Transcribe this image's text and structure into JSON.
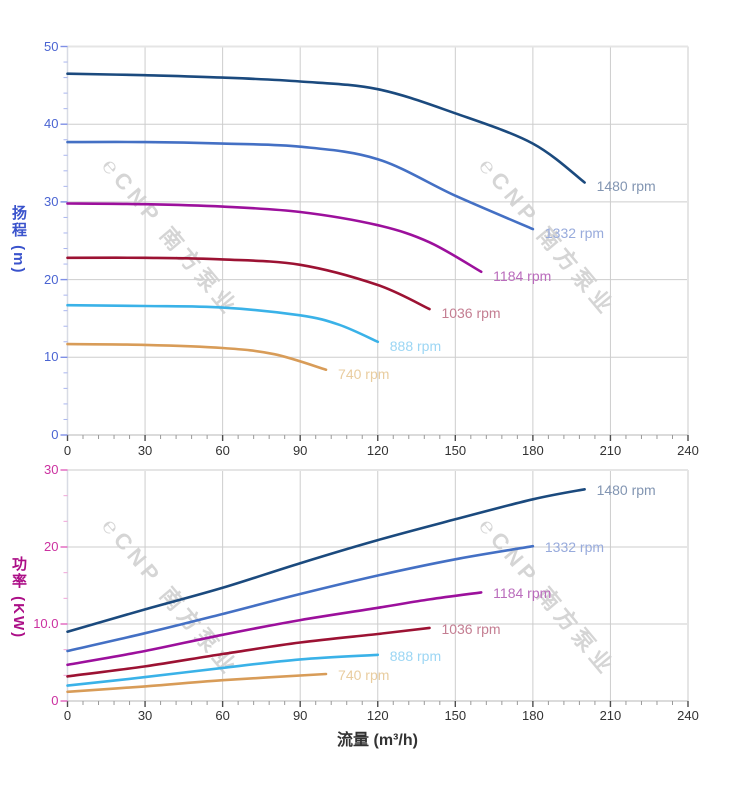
{
  "chart_data": {
    "type": "line",
    "x_axis_title": "流量 (m³/h)",
    "x_ticks": {
      "values": [
        0,
        30,
        60,
        90,
        120,
        150,
        180,
        210,
        240
      ],
      "labels": [
        "0",
        "30",
        "60",
        "90",
        "120",
        "150",
        "180",
        "210",
        "240"
      ],
      "minor_step": 6,
      "xlim": [
        0,
        240
      ]
    },
    "watermark": {
      "text": "℮CNP 南方泵业",
      "color": "#d5d5d5"
    },
    "axis_style": {
      "x_label_color": "#333333",
      "x_title_color": "#333333",
      "grid_color": "#cdcdcd",
      "border_color": "#e5e5e5",
      "x_tick_color": "#4d4d4d",
      "x_minor_tick_color": "#999999",
      "axis_line_color": "#d8dbe4"
    },
    "charts": [
      {
        "name": "head-vs-flow",
        "y_axis": {
          "title": "扬程 (m)",
          "values": [
            0,
            10,
            20,
            30,
            40,
            50
          ],
          "labels": [
            "0",
            "10",
            "20",
            "30",
            "40",
            "50"
          ],
          "ylim": [
            0,
            50
          ],
          "minor_step": 2,
          "title_color": "#3a53cc",
          "label_color": "#4a64d2",
          "tick_color": "#7f90e6",
          "minor_tick_color": "#a9b5ef"
        },
        "series": [
          {
            "label": "1480 rpm",
            "color": "#1b4a7e",
            "label_color": "#8295b2",
            "points": [
              [
                0,
                46.5
              ],
              [
                30,
                46.3
              ],
              [
                60,
                46.0
              ],
              [
                90,
                45.5
              ],
              [
                120,
                44.5
              ],
              [
                150,
                41.4
              ],
              [
                180,
                37.5
              ],
              [
                200,
                32.5
              ]
            ]
          },
          {
            "label": "1332 rpm",
            "color": "#4470c4",
            "label_color": "#98abdc",
            "points": [
              [
                0,
                37.7
              ],
              [
                30,
                37.7
              ],
              [
                60,
                37.5
              ],
              [
                90,
                37.1
              ],
              [
                120,
                35.5
              ],
              [
                150,
                30.8
              ],
              [
                180,
                26.5
              ]
            ]
          },
          {
            "label": "1184 rpm",
            "color": "#9c109c",
            "label_color": "#ba6cbc",
            "points": [
              [
                0,
                29.8
              ],
              [
                30,
                29.7
              ],
              [
                60,
                29.4
              ],
              [
                90,
                28.7
              ],
              [
                120,
                27.0
              ],
              [
                140,
                24.8
              ],
              [
                160,
                21.0
              ]
            ]
          },
          {
            "label": "1036 rpm",
            "color": "#9c1233",
            "label_color": "#c47e92",
            "points": [
              [
                0,
                22.8
              ],
              [
                30,
                22.8
              ],
              [
                60,
                22.6
              ],
              [
                90,
                21.9
              ],
              [
                120,
                19.3
              ],
              [
                140,
                16.2
              ]
            ]
          },
          {
            "label": "888 rpm",
            "color": "#3ab2e8",
            "label_color": "#9cd6f4",
            "points": [
              [
                0,
                16.7
              ],
              [
                30,
                16.6
              ],
              [
                60,
                16.4
              ],
              [
                90,
                15.4
              ],
              [
                105,
                14.2
              ],
              [
                120,
                12.0
              ]
            ]
          },
          {
            "label": "740 rpm",
            "color": "#d89c58",
            "label_color": "#e9cda0",
            "points": [
              [
                0,
                11.7
              ],
              [
                30,
                11.6
              ],
              [
                60,
                11.2
              ],
              [
                80,
                10.4
              ],
              [
                100,
                8.4
              ]
            ]
          }
        ]
      },
      {
        "name": "power-vs-flow",
        "y_axis": {
          "title": "功率 (KW)",
          "values": [
            0,
            10,
            20,
            30
          ],
          "labels": [
            "0",
            "10.0",
            "20",
            "30"
          ],
          "ylim": [
            0,
            30
          ],
          "minor_step": 3.3333,
          "title_color": "#ac0f87",
          "label_color": "#cb31a0",
          "tick_color": "#e062bd",
          "minor_tick_color": "#f0a4d8"
        },
        "series": [
          {
            "label": "1480 rpm",
            "color": "#1b4a7e",
            "label_color": "#8295b2",
            "points": [
              [
                0,
                9.0
              ],
              [
                30,
                11.9
              ],
              [
                60,
                14.7
              ],
              [
                90,
                17.9
              ],
              [
                120,
                20.9
              ],
              [
                150,
                23.6
              ],
              [
                180,
                26.2
              ],
              [
                200,
                27.5
              ]
            ]
          },
          {
            "label": "1332 rpm",
            "color": "#4470c4",
            "label_color": "#98abdc",
            "points": [
              [
                0,
                6.5
              ],
              [
                30,
                8.8
              ],
              [
                60,
                11.3
              ],
              [
                90,
                13.9
              ],
              [
                120,
                16.3
              ],
              [
                150,
                18.4
              ],
              [
                180,
                20.1
              ]
            ]
          },
          {
            "label": "1184 rpm",
            "color": "#9c109c",
            "label_color": "#ba6cbc",
            "points": [
              [
                0,
                4.7
              ],
              [
                30,
                6.5
              ],
              [
                60,
                8.6
              ],
              [
                90,
                10.5
              ],
              [
                120,
                12.1
              ],
              [
                140,
                13.2
              ],
              [
                160,
                14.1
              ]
            ]
          },
          {
            "label": "1036 rpm",
            "color": "#9c1233",
            "label_color": "#c47e92",
            "points": [
              [
                0,
                3.2
              ],
              [
                30,
                4.5
              ],
              [
                60,
                6.1
              ],
              [
                90,
                7.6
              ],
              [
                120,
                8.7
              ],
              [
                140,
                9.5
              ]
            ]
          },
          {
            "label": "888 rpm",
            "color": "#3ab2e8",
            "label_color": "#9cd6f4",
            "points": [
              [
                0,
                2.0
              ],
              [
                30,
                3.1
              ],
              [
                60,
                4.3
              ],
              [
                90,
                5.4
              ],
              [
                120,
                6.0
              ]
            ]
          },
          {
            "label": "740 rpm",
            "color": "#d89c58",
            "label_color": "#e9cda0",
            "points": [
              [
                0,
                1.2
              ],
              [
                30,
                1.9
              ],
              [
                60,
                2.7
              ],
              [
                100,
                3.5
              ]
            ]
          }
        ]
      }
    ]
  }
}
